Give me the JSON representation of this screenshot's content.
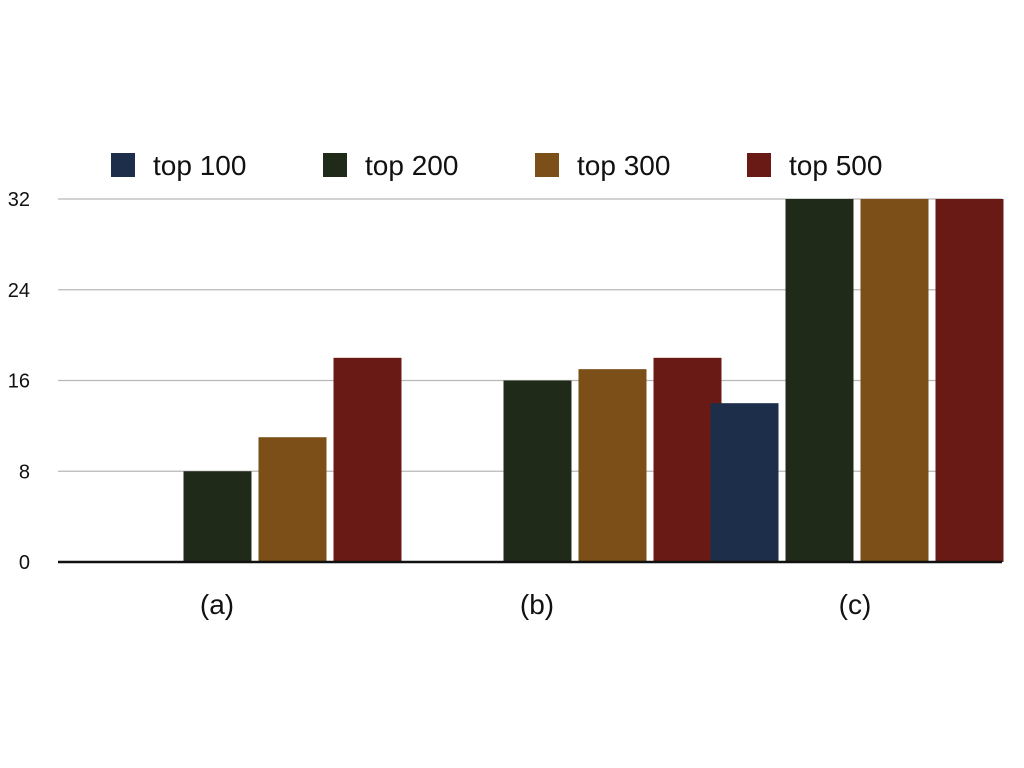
{
  "chart_data": {
    "type": "bar",
    "title": "",
    "xlabel": "",
    "ylabel": "",
    "categories": [
      "(a)",
      "(b)",
      "(c)"
    ],
    "ylim": [
      0,
      32
    ],
    "yticks": [
      0,
      8,
      16,
      24,
      32
    ],
    "grid": true,
    "legend_position": "top",
    "series": [
      {
        "name": "top 100",
        "color": "#1c2e4a",
        "values": [
          null,
          null,
          14
        ]
      },
      {
        "name": "top 200",
        "color": "#1f2a18",
        "values": [
          8,
          16,
          32
        ]
      },
      {
        "name": "top 300",
        "color": "#7b4f17",
        "values": [
          11,
          17,
          32
        ]
      },
      {
        "name": "top 500",
        "color": "#6a1a14",
        "values": [
          18,
          18,
          32
        ]
      }
    ]
  }
}
